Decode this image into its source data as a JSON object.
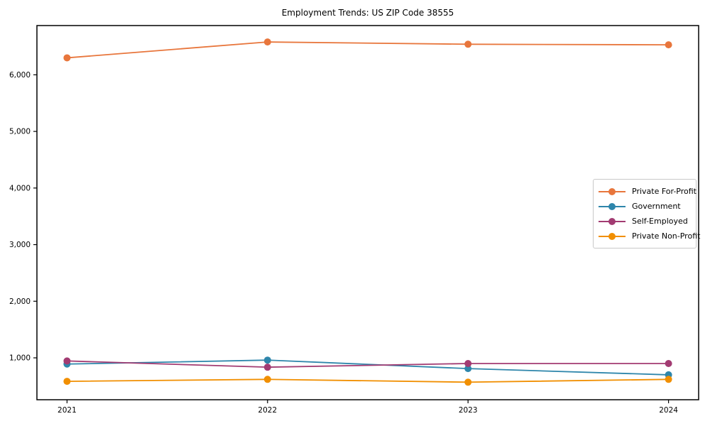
{
  "chart_data": {
    "type": "line",
    "title": "Employment Trends: US ZIP Code 38555",
    "categories": [
      "2021",
      "2022",
      "2023",
      "2024"
    ],
    "series": [
      {
        "name": "Private For-Profit",
        "color": "#E8763C",
        "values": [
          6300,
          6580,
          6540,
          6530
        ]
      },
      {
        "name": "Government",
        "color": "#2E86AB",
        "values": [
          890,
          960,
          810,
          700
        ]
      },
      {
        "name": "Self-Employed",
        "color": "#A23B72",
        "values": [
          945,
          835,
          900,
          900
        ]
      },
      {
        "name": "Private Non-Profit",
        "color": "#F18F01",
        "values": [
          585,
          620,
          570,
          620
        ]
      }
    ],
    "xlabel": "",
    "ylabel": "",
    "ylim": [
      260,
      6870
    ],
    "yticks": [
      1000,
      2000,
      3000,
      4000,
      5000,
      6000
    ],
    "ytick_labels": [
      "1,000",
      "2,000",
      "3,000",
      "4,000",
      "5,000",
      "6,000"
    ],
    "grid": false,
    "legend_position": "center-right",
    "marker": "circle",
    "axis_color": "#000000",
    "background_color": "#FFFFFF"
  }
}
